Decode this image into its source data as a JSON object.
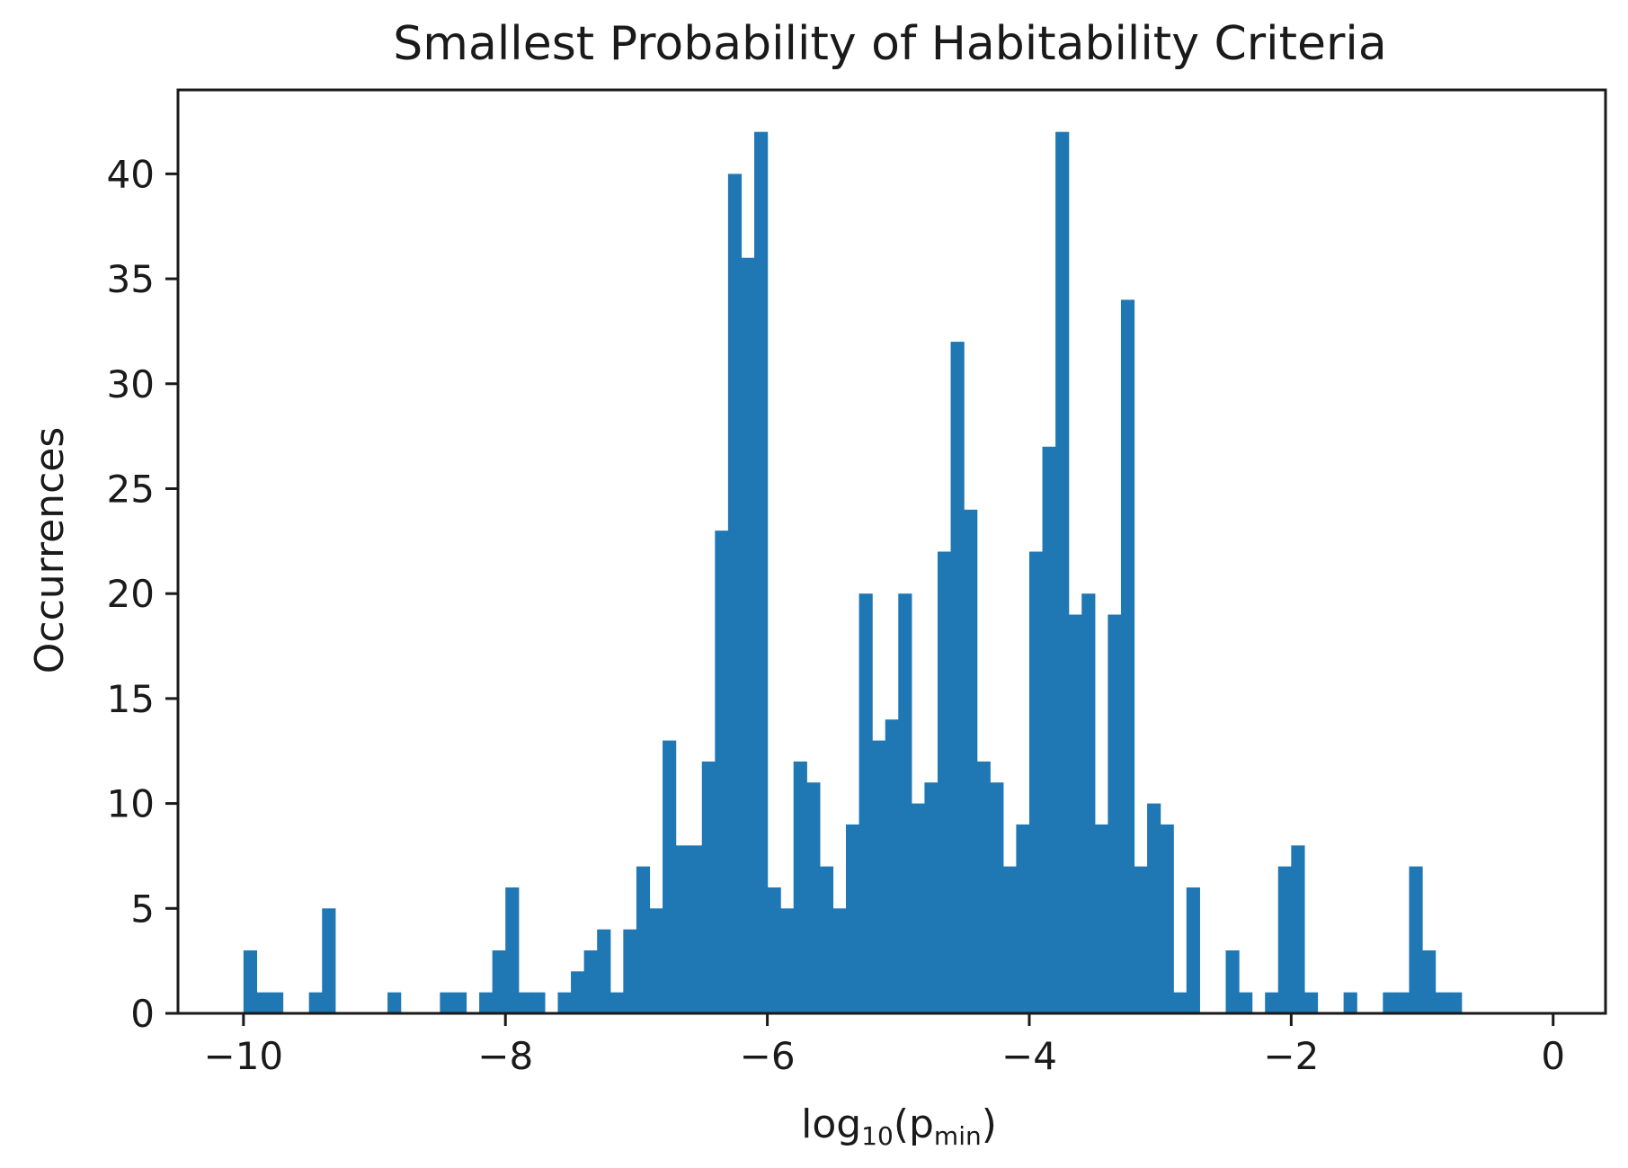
{
  "chart_data": {
    "type": "bar",
    "title": "Smallest Probability of Habitability Criteria",
    "xlabel": {
      "prefix": "log",
      "base": "10",
      "open": "(",
      "variable": "p",
      "subscript": "min",
      "close": ")"
    },
    "ylabel": "Occurrences",
    "xlim": [
      -10.5,
      0.4
    ],
    "ylim": [
      0,
      44
    ],
    "xticks": [
      -10,
      -8,
      -6,
      -4,
      -2,
      0
    ],
    "xtick_labels": [
      "−10",
      "−8",
      "−6",
      "−4",
      "−2",
      "0"
    ],
    "yticks": [
      0,
      5,
      10,
      15,
      20,
      25,
      30,
      35,
      40
    ],
    "ytick_labels": [
      "0",
      "5",
      "10",
      "15",
      "20",
      "25",
      "30",
      "35",
      "40"
    ],
    "bar_color": "#1f77b4",
    "bin_start": -10,
    "bin_width": 0.1,
    "counts": [
      3,
      1,
      1,
      0,
      0,
      1,
      5,
      0,
      0,
      0,
      0,
      1,
      0,
      0,
      0,
      1,
      1,
      0,
      1,
      3,
      6,
      1,
      1,
      0,
      1,
      2,
      3,
      4,
      1,
      4,
      7,
      5,
      13,
      8,
      8,
      12,
      23,
      40,
      36,
      42,
      6,
      5,
      12,
      11,
      7,
      5,
      9,
      20,
      13,
      14,
      20,
      10,
      11,
      22,
      32,
      24,
      12,
      11,
      7,
      9,
      22,
      27,
      42,
      19,
      20,
      9,
      19,
      34,
      7,
      10,
      9,
      1,
      6,
      0,
      0,
      3,
      1,
      0,
      1,
      7,
      8,
      1,
      0,
      0,
      1,
      0,
      0,
      1,
      1,
      7,
      3,
      1,
      1
    ]
  }
}
